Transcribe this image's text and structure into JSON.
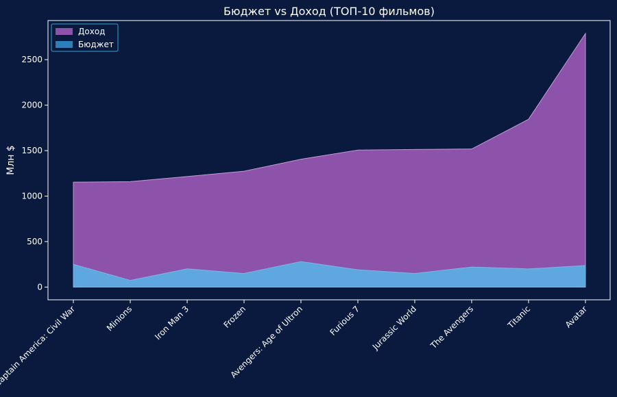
{
  "chart_data": {
    "type": "area",
    "title": "Бюджет vs Доход (ТОП-10 фильмов)",
    "xlabel": "",
    "ylabel": "Млн $",
    "categories": [
      "Captain America: Civil War",
      "Minions",
      "Iron Man 3",
      "Frozen",
      "Avengers: Age of Ultron",
      "Furious 7",
      "Jurassic World",
      "The Avengers",
      "Titanic",
      "Avatar"
    ],
    "series": [
      {
        "name": "Доход",
        "color": "#9b59b6",
        "values": [
          1153,
          1159,
          1215,
          1274,
          1405,
          1506,
          1513,
          1518,
          1845,
          2788
        ]
      },
      {
        "name": "Бюджет",
        "color": "#5dade2",
        "values": [
          250,
          74,
          200,
          150,
          280,
          190,
          150,
          220,
          200,
          237
        ]
      }
    ],
    "yticks": [
      0,
      500,
      1000,
      1500,
      2000,
      2500
    ],
    "ylim": [
      -140,
      2930
    ],
    "legend": "top-left",
    "colors": {
      "background": "#0a1a3f",
      "axes": "#ffffff",
      "legend_border": "#2ea7d6"
    }
  }
}
